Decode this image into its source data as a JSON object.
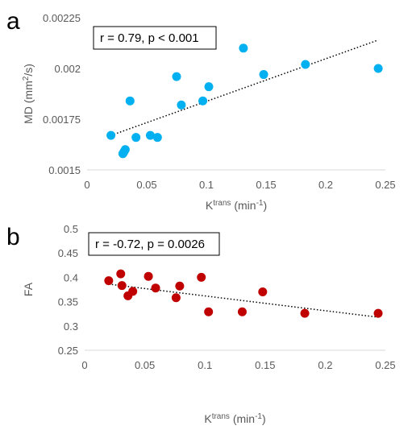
{
  "chart_data": [
    {
      "panel": "a",
      "type": "scatter",
      "annotation": "r = 0.79, p < 0.001",
      "xlabel": "K",
      "xlabel_sup": "trans",
      "xlabel_unit": " (min",
      "xlabel_unit_sup": "-1",
      "xlabel_close": ")",
      "ylabel": "MD (mm",
      "ylabel_sup": "2",
      "ylabel_close": "/s)",
      "xlim": [
        0,
        0.25
      ],
      "ylim": [
        0.0015,
        0.00225
      ],
      "xticks": [
        0,
        0.05,
        0.1,
        0.15,
        0.2,
        0.25
      ],
      "xtick_labels": [
        "0",
        "0.05",
        "0.1",
        "0.15",
        "0.2",
        "0.25"
      ],
      "yticks": [
        0.0015,
        0.00175,
        0.002,
        0.00225
      ],
      "ytick_labels": [
        "0.0015",
        "0.00175",
        "0.002",
        "0.00225"
      ],
      "gridlines": false,
      "marker_color": "#00b0f0",
      "trendline": {
        "style": "dotted",
        "x": [
          0.02,
          0.244
        ],
        "y": [
          0.00167,
          0.00214
        ]
      },
      "points": [
        {
          "x": 0.02,
          "y": 0.00167
        },
        {
          "x": 0.03,
          "y": 0.00158
        },
        {
          "x": 0.031,
          "y": 0.00159
        },
        {
          "x": 0.032,
          "y": 0.0016
        },
        {
          "x": 0.036,
          "y": 0.00184
        },
        {
          "x": 0.041,
          "y": 0.00166
        },
        {
          "x": 0.053,
          "y": 0.00167
        },
        {
          "x": 0.059,
          "y": 0.00166
        },
        {
          "x": 0.075,
          "y": 0.00196
        },
        {
          "x": 0.079,
          "y": 0.00182
        },
        {
          "x": 0.097,
          "y": 0.00184
        },
        {
          "x": 0.102,
          "y": 0.00191
        },
        {
          "x": 0.131,
          "y": 0.0021
        },
        {
          "x": 0.148,
          "y": 0.00197
        },
        {
          "x": 0.183,
          "y": 0.00202
        },
        {
          "x": 0.244,
          "y": 0.002
        }
      ]
    },
    {
      "panel": "b",
      "type": "scatter",
      "annotation": "r = -0.72, p = 0.0026",
      "xlabel": "K",
      "xlabel_sup": "trans",
      "xlabel_unit": " (min",
      "xlabel_unit_sup": "-1",
      "xlabel_close": ")",
      "ylabel": "FA",
      "xlim": [
        0,
        0.25
      ],
      "ylim": [
        0.25,
        0.5
      ],
      "xticks": [
        0,
        0.05,
        0.1,
        0.15,
        0.2,
        0.25
      ],
      "xtick_labels": [
        "0",
        "0.05",
        "0.1",
        "0.15",
        "0.2",
        "0.25"
      ],
      "yticks": [
        0.25,
        0.3,
        0.35,
        0.4,
        0.45,
        0.5
      ],
      "ytick_labels": [
        "0.25",
        "0.3",
        "0.35",
        "0.4",
        "0.45",
        "0.5"
      ],
      "gridlines": false,
      "marker_color": "#c00000",
      "trendline": {
        "style": "dotted",
        "x": [
          0.02,
          0.244
        ],
        "y": [
          0.386,
          0.318
        ]
      },
      "points": [
        {
          "x": 0.02,
          "y": 0.393
        },
        {
          "x": 0.03,
          "y": 0.407
        },
        {
          "x": 0.031,
          "y": 0.383
        },
        {
          "x": 0.036,
          "y": 0.362
        },
        {
          "x": 0.04,
          "y": 0.371
        },
        {
          "x": 0.053,
          "y": 0.402
        },
        {
          "x": 0.059,
          "y": 0.378
        },
        {
          "x": 0.076,
          "y": 0.358
        },
        {
          "x": 0.079,
          "y": 0.382
        },
        {
          "x": 0.097,
          "y": 0.4
        },
        {
          "x": 0.103,
          "y": 0.329
        },
        {
          "x": 0.131,
          "y": 0.329
        },
        {
          "x": 0.148,
          "y": 0.37
        },
        {
          "x": 0.183,
          "y": 0.326
        },
        {
          "x": 0.244,
          "y": 0.326
        }
      ]
    }
  ],
  "panel_labels": [
    "a",
    "b"
  ]
}
